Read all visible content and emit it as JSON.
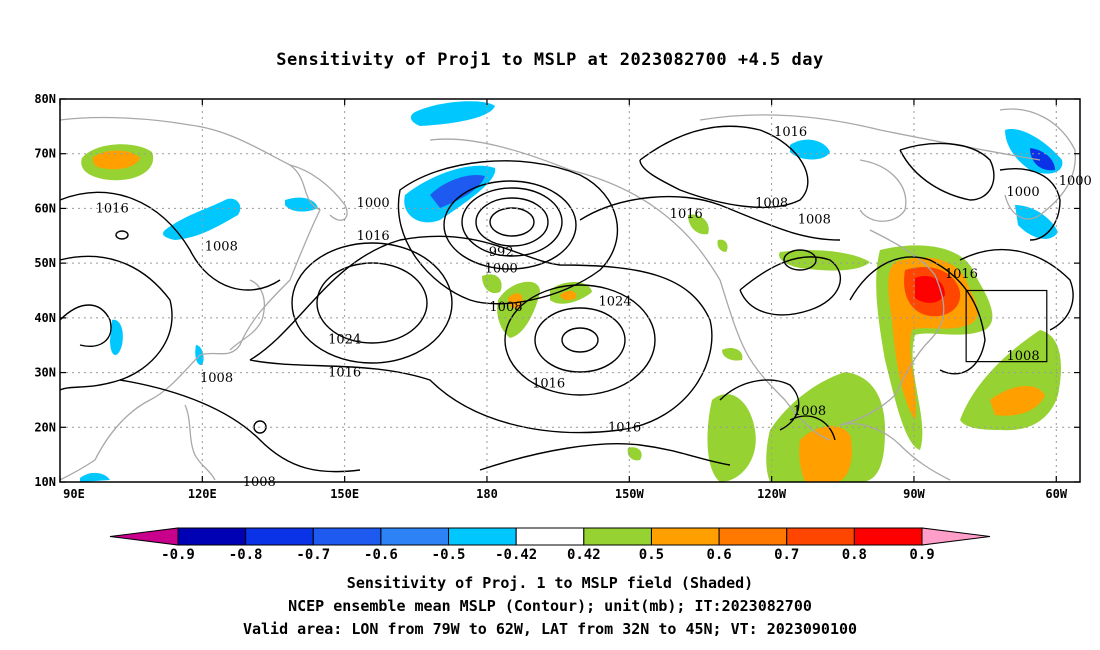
{
  "title": "Sensitivity of Proj1 to MSLP at 2023082700 +4.5 day",
  "map": {
    "lon_range_deg_east": [
      90,
      305
    ],
    "lat_range": [
      10,
      80
    ],
    "x_ticks": [
      {
        "lon": 90,
        "label": "90E"
      },
      {
        "lon": 120,
        "label": "120E"
      },
      {
        "lon": 150,
        "label": "150E"
      },
      {
        "lon": 180,
        "label": "180"
      },
      {
        "lon": 210,
        "label": "150W"
      },
      {
        "lon": 240,
        "label": "120W"
      },
      {
        "lon": 270,
        "label": "90W"
      },
      {
        "lon": 300,
        "label": "60W"
      }
    ],
    "y_ticks": [
      {
        "lat": 10,
        "label": "10N"
      },
      {
        "lat": 20,
        "label": "20N"
      },
      {
        "lat": 30,
        "label": "30N"
      },
      {
        "lat": 40,
        "label": "40N"
      },
      {
        "lat": 50,
        "label": "50N"
      },
      {
        "lat": 60,
        "label": "60N"
      },
      {
        "lat": 70,
        "label": "70N"
      },
      {
        "lat": 80,
        "label": "80N"
      }
    ],
    "grid": true,
    "valid_area_box": {
      "lon": [
        281,
        298
      ],
      "lat": [
        32,
        45
      ]
    },
    "contour_labels": [
      {
        "text": "1016",
        "lon": 101,
        "lat": 60
      },
      {
        "text": "1008",
        "lon": 124,
        "lat": 53
      },
      {
        "text": "1000",
        "lon": 156,
        "lat": 61
      },
      {
        "text": "1016",
        "lon": 156,
        "lat": 55
      },
      {
        "text": "992",
        "lon": 183,
        "lat": 52
      },
      {
        "text": "1000",
        "lon": 183,
        "lat": 49
      },
      {
        "text": "1008",
        "lon": 184,
        "lat": 42
      },
      {
        "text": "1024",
        "lon": 150,
        "lat": 36
      },
      {
        "text": "1016",
        "lon": 150,
        "lat": 30
      },
      {
        "text": "1016",
        "lon": 193,
        "lat": 28
      },
      {
        "text": "1008",
        "lon": 123,
        "lat": 29
      },
      {
        "text": "1024",
        "lon": 207,
        "lat": 43
      },
      {
        "text": "1016",
        "lon": 209,
        "lat": 20
      },
      {
        "text": "1016",
        "lon": 244,
        "lat": 74
      },
      {
        "text": "1008",
        "lon": 240,
        "lat": 61
      },
      {
        "text": "1016",
        "lon": 222,
        "lat": 59
      },
      {
        "text": "1008",
        "lon": 249,
        "lat": 58
      },
      {
        "text": "1016",
        "lon": 280,
        "lat": 48
      },
      {
        "text": "1008",
        "lon": 293,
        "lat": 33
      },
      {
        "text": "1008",
        "lon": 248,
        "lat": 23
      },
      {
        "text": "1000",
        "lon": 293,
        "lat": 63
      },
      {
        "text": "1000",
        "lon": 304,
        "lat": 65
      },
      {
        "text": "1008",
        "lon": 132,
        "lat": 10
      }
    ]
  },
  "colorbar": {
    "labels": [
      "-0.9",
      "-0.8",
      "-0.7",
      "-0.6",
      "-0.5",
      "-0.42",
      "0.42",
      "0.5",
      "0.6",
      "0.7",
      "0.8",
      "0.9"
    ],
    "colors": [
      "#0000b4",
      "#0a32e6",
      "#1e5af0",
      "#2d82f5",
      "#00c8ff",
      "#ffffff",
      "#96d232",
      "#ffa000",
      "#ff7800",
      "#ff4600",
      "#ff0000"
    ],
    "low_end_color": "#c8008c",
    "high_end_color": "#ff9ec8"
  },
  "colors": {
    "land_outline": "#a8a8a8",
    "contour": "#000000",
    "grid": "#9a9a9a"
  },
  "captions": [
    "Sensitivity of Proj. 1 to MSLP field (Shaded)",
    "NCEP ensemble mean MSLP (Contour); unit(mb); IT:2023082700",
    "Valid area: LON from 79W to 62W, LAT from 32N to 45N; VT: 2023090100"
  ]
}
